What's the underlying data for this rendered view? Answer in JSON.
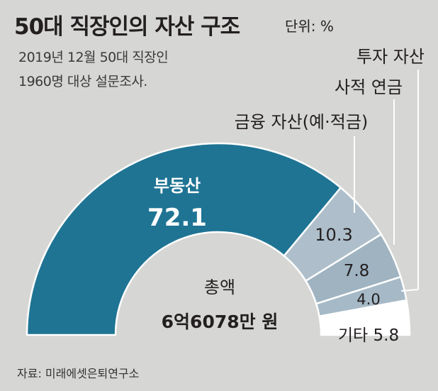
{
  "header": {
    "title": "50대 직장인의 자산 구조",
    "unit": "단위: %",
    "subtitle_line1": "2019년 12월 50대 직장인",
    "subtitle_line2": "1960명 대상 설문조사."
  },
  "source": "자료: 미래에셋은퇴연구소",
  "center": {
    "label": "총액",
    "value": "6억6078만 원"
  },
  "colors": {
    "background": "#d6d6d4",
    "real_estate": "#1f7494",
    "financial": "#aebfcb",
    "pension": "#9fb3c1",
    "investment": "#a6b9c6",
    "other": "#ffffff",
    "text_dark": "#231f20",
    "text_light": "#ffffff",
    "leader_line": "#ffffff"
  },
  "chart_data": {
    "type": "pie",
    "variant": "half-donut",
    "total_label": "총액",
    "total_value": "6억6078만 원",
    "unit": "%",
    "slices": [
      {
        "label": "부동산",
        "value": 72.1,
        "value_text": "72.1"
      },
      {
        "label": "금융 자산(예·적금)",
        "value": 10.3,
        "value_text": "10.3"
      },
      {
        "label": "사적 연금",
        "value": 7.8,
        "value_text": "7.8"
      },
      {
        "label": "투자 자산",
        "value": 4.0,
        "value_text": "4.0"
      },
      {
        "label": "기타",
        "value": 5.8,
        "value_text": "5.8"
      }
    ]
  }
}
